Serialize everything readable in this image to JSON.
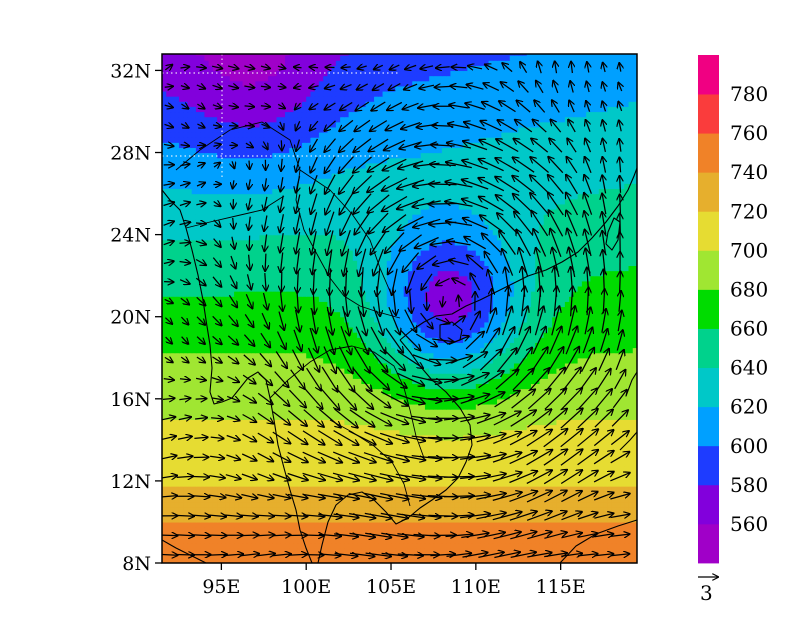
{
  "chart_data": {
    "type": "heatmap",
    "title": "",
    "xlabel": "",
    "ylabel": "",
    "x_range": [
      91.5,
      119.5
    ],
    "y_range": [
      8,
      32.8
    ],
    "x_ticks": [
      {
        "value": 95,
        "label": "95E"
      },
      {
        "value": 100,
        "label": "100E"
      },
      {
        "value": 105,
        "label": "105E"
      },
      {
        "value": 110,
        "label": "110E"
      },
      {
        "value": 115,
        "label": "115E"
      }
    ],
    "y_ticks": [
      {
        "value": 8,
        "label": "8N"
      },
      {
        "value": 12,
        "label": "12N"
      },
      {
        "value": 16,
        "label": "16N"
      },
      {
        "value": 20,
        "label": "20N"
      },
      {
        "value": 24,
        "label": "24N"
      },
      {
        "value": 28,
        "label": "28N"
      },
      {
        "value": 32,
        "label": "32N"
      }
    ],
    "grid_dotted_lat": [
      28,
      32
    ],
    "grid_dotted_lon": [
      95,
      100
    ],
    "colorbar": {
      "levels": [
        560,
        580,
        600,
        620,
        640,
        660,
        680,
        700,
        720,
        740,
        760,
        780
      ],
      "colors": [
        "#a000c8",
        "#8200dc",
        "#1e3cff",
        "#00a0ff",
        "#00c8c8",
        "#00d28c",
        "#00dc00",
        "#a0e632",
        "#e6dc32",
        "#e6af2d",
        "#f08228",
        "#fa3c3c",
        "#f00082"
      ]
    },
    "low_center": {
      "lon": 108.5,
      "lat": 20.5,
      "min_value": 590
    },
    "vector_reference": {
      "label": "3",
      "magnitude": 3
    }
  }
}
